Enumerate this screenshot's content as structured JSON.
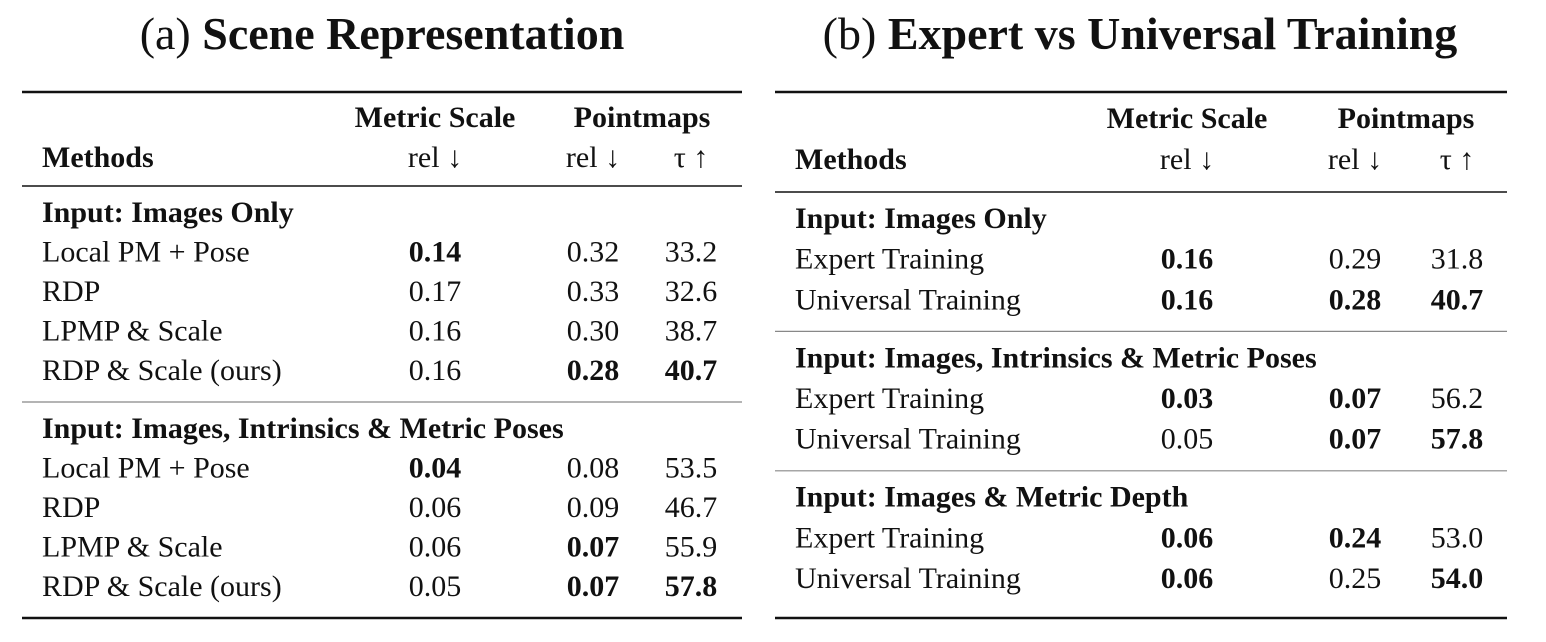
{
  "tables": [
    {
      "label": "(a)",
      "title": "Scene Representation",
      "header": {
        "methods": "Methods",
        "groups": [
          "Metric Scale",
          "Pointmaps"
        ],
        "columns": [
          "rel ↓",
          "rel ↓",
          "τ ↑"
        ]
      },
      "sections": [
        {
          "heading": "Input: Images Only",
          "rows": [
            {
              "cells": [
                "Local PM + Pose",
                "0.14",
                "0.32",
                "33.2"
              ],
              "bold": [
                1
              ]
            },
            {
              "cells": [
                "RDP",
                "0.17",
                "0.33",
                "32.6"
              ],
              "bold": []
            },
            {
              "cells": [
                "LPMP & Scale",
                "0.16",
                "0.30",
                "38.7"
              ],
              "bold": []
            },
            {
              "cells": [
                "RDP & Scale (ours)",
                "0.16",
                "0.28",
                "40.7"
              ],
              "bold": [
                2,
                3
              ]
            }
          ]
        },
        {
          "heading": "Input: Images, Intrinsics & Metric Poses",
          "rows": [
            {
              "cells": [
                "Local PM + Pose",
                "0.04",
                "0.08",
                "53.5"
              ],
              "bold": [
                1
              ]
            },
            {
              "cells": [
                "RDP",
                "0.06",
                "0.09",
                "46.7"
              ],
              "bold": []
            },
            {
              "cells": [
                "LPMP & Scale",
                "0.06",
                "0.07",
                "55.9"
              ],
              "bold": [
                2
              ]
            },
            {
              "cells": [
                "RDP & Scale (ours)",
                "0.05",
                "0.07",
                "57.8"
              ],
              "bold": [
                2,
                3
              ]
            }
          ]
        }
      ]
    },
    {
      "label": "(b)",
      "title": "Expert vs Universal Training",
      "header": {
        "methods": "Methods",
        "groups": [
          "Metric Scale",
          "Pointmaps"
        ],
        "columns": [
          "rel ↓",
          "rel ↓",
          "τ ↑"
        ]
      },
      "sections": [
        {
          "heading": "Input: Images Only",
          "rows": [
            {
              "cells": [
                "Expert Training",
                "0.16",
                "0.29",
                "31.8"
              ],
              "bold": [
                1
              ]
            },
            {
              "cells": [
                "Universal Training",
                "0.16",
                "0.28",
                "40.7"
              ],
              "bold": [
                1,
                2,
                3
              ]
            }
          ]
        },
        {
          "heading": "Input: Images, Intrinsics & Metric Poses",
          "rows": [
            {
              "cells": [
                "Expert Training",
                "0.03",
                "0.07",
                "56.2"
              ],
              "bold": [
                1,
                2
              ]
            },
            {
              "cells": [
                "Universal Training",
                "0.05",
                "0.07",
                "57.8"
              ],
              "bold": [
                2,
                3
              ]
            }
          ]
        },
        {
          "heading": "Input: Images & Metric Depth",
          "rows": [
            {
              "cells": [
                "Expert Training",
                "0.06",
                "0.24",
                "53.0"
              ],
              "bold": [
                1,
                2
              ]
            },
            {
              "cells": [
                "Universal Training",
                "0.06",
                "0.25",
                "54.0"
              ],
              "bold": [
                1,
                3
              ]
            }
          ]
        }
      ]
    }
  ]
}
